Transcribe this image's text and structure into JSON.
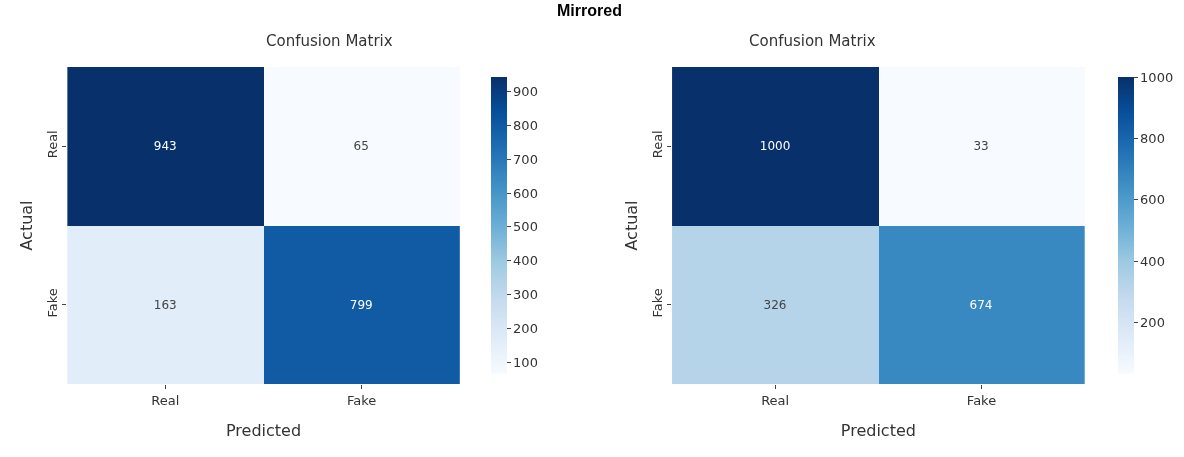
{
  "chart_data": [
    {
      "type": "heatmap",
      "title": "Confusion Matrix",
      "xlabel": "Predicted",
      "ylabel": "Actual",
      "annotations": [
        "Mirrored"
      ],
      "categories": [
        "Real",
        "Fake"
      ],
      "y_categories": [
        "Real",
        "Fake"
      ],
      "cells": [
        [
          943,
          65
        ],
        [
          163,
          799
        ]
      ],
      "data_labels": true,
      "clim": [
        65,
        943
      ],
      "cticks": [
        100,
        200,
        300,
        400,
        500,
        600,
        700,
        800,
        900
      ]
    },
    {
      "type": "heatmap",
      "title": "Confusion Matrix",
      "xlabel": "Predicted",
      "ylabel": "Actual",
      "categories": [
        "Real",
        "Fake"
      ],
      "y_categories": [
        "Real",
        "Fake"
      ],
      "cells": [
        [
          1000,
          33
        ],
        [
          326,
          674
        ]
      ],
      "data_labels": true,
      "clim": [
        33,
        1000
      ],
      "cticks": [
        200,
        400,
        600,
        800,
        1000
      ]
    }
  ]
}
